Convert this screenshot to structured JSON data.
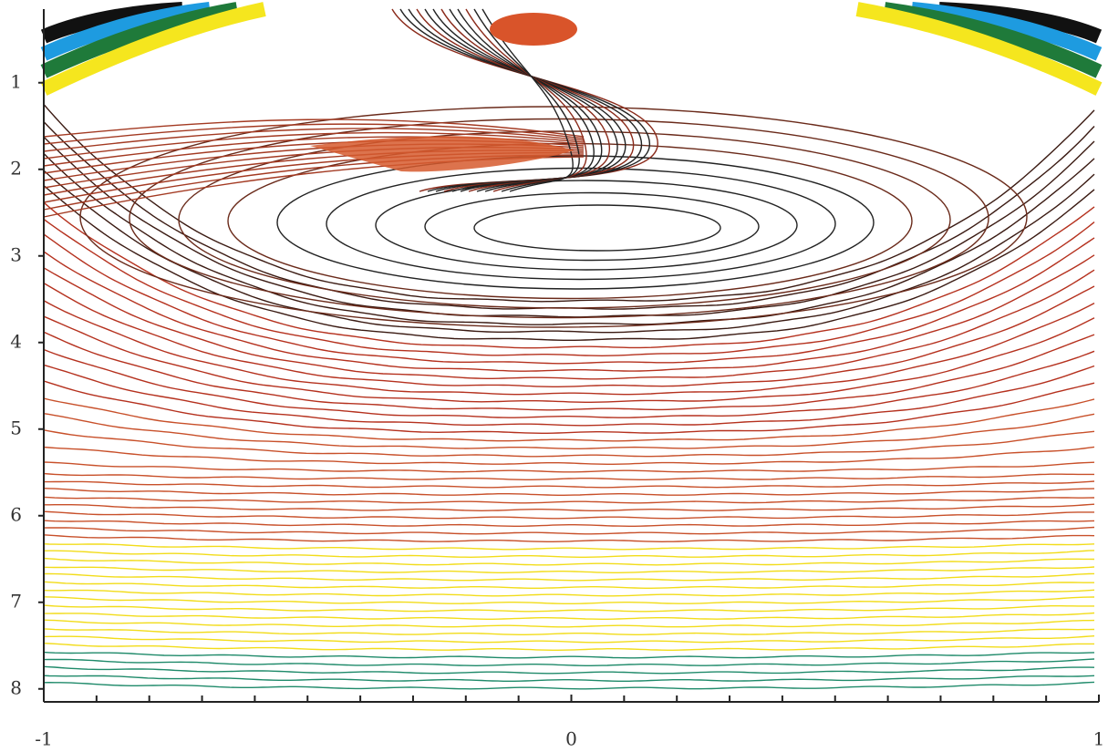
{
  "chart_data": {
    "type": "contour",
    "xlim": [
      -1,
      1
    ],
    "xticks": [
      -1,
      0,
      1
    ],
    "ylim": [
      0.15,
      8.15
    ],
    "yticks": [
      1,
      2,
      3,
      4,
      5,
      6,
      7,
      8
    ]
  }
}
